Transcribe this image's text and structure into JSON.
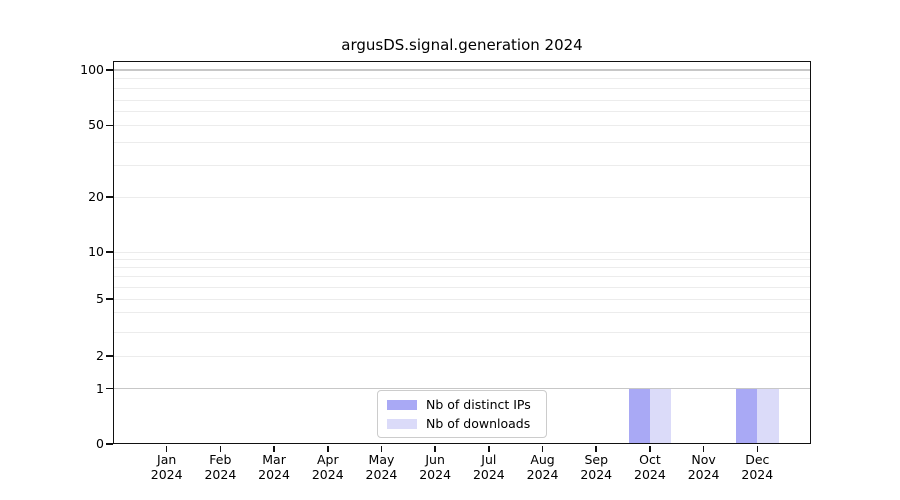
{
  "chart_data": {
    "type": "bar",
    "title": "argusDS.signal.generation 2024",
    "categories": [
      "Jan",
      "Feb",
      "Mar",
      "Apr",
      "May",
      "Jun",
      "Jul",
      "Aug",
      "Sep",
      "Oct",
      "Nov",
      "Dec"
    ],
    "x_tick_year": "2024",
    "series": [
      {
        "name": "Nb of distinct IPs",
        "color": "#a9a9f5",
        "values": [
          0,
          0,
          0,
          0,
          0,
          0,
          0,
          0,
          0,
          1,
          0,
          1
        ]
      },
      {
        "name": "Nb of downloads",
        "color": "#dbdbf9",
        "values": [
          0,
          0,
          0,
          0,
          0,
          0,
          0,
          0,
          0,
          1,
          0,
          1
        ]
      }
    ],
    "yticks": [
      100,
      50,
      20,
      10,
      5,
      2,
      1,
      0
    ],
    "ylim": [
      0,
      110
    ],
    "yscale": "symlog",
    "xlabel": "",
    "ylabel": "",
    "grid": "horizontal (major + minor)",
    "legend_position": "lower center inside axes"
  }
}
